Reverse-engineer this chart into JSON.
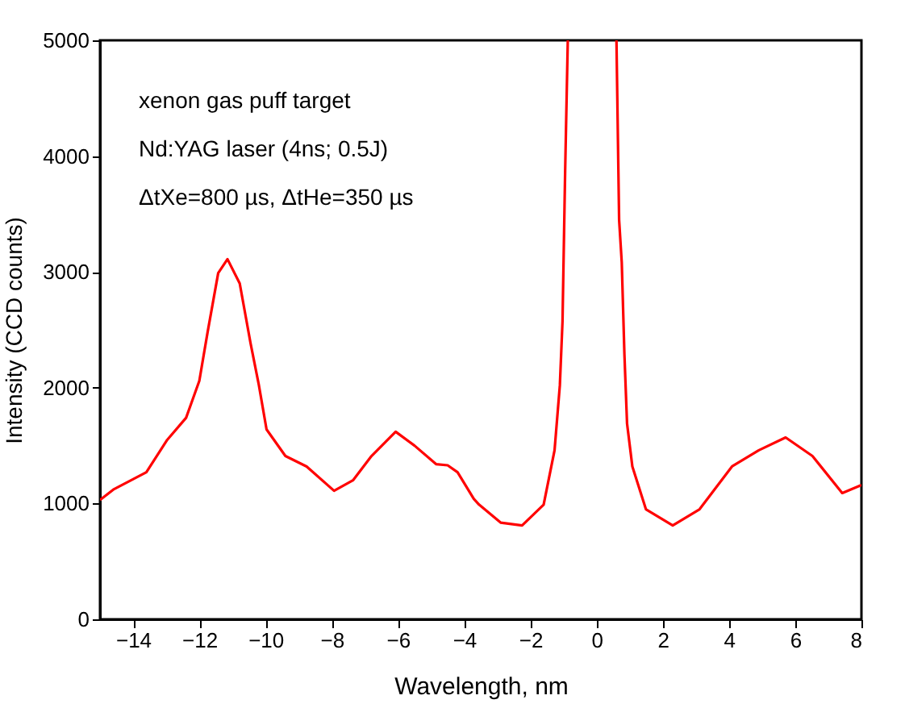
{
  "chart_data": {
    "type": "line",
    "xlabel": "Wavelength, nm",
    "ylabel": "Intensity (CCD counts)",
    "annotations": [
      "xenon gas puff target",
      "Nd:YAG laser (4ns; 0.5J)",
      "ΔtXe=800 µs, ΔtHe=350 µs"
    ],
    "xlim": [
      -15,
      8
    ],
    "xticks": [
      -14,
      -12,
      -10,
      -8,
      -6,
      -4,
      -2,
      0,
      2,
      4,
      6,
      8
    ],
    "ylim": [
      0,
      5000
    ],
    "yticks": [
      0,
      1000,
      2000,
      3000,
      4000,
      5000
    ],
    "grid": false,
    "marker": "none",
    "line_style": "solid",
    "series": [
      {
        "color": "#ff0000",
        "x": [
          -15,
          -14.6,
          -13.6,
          -12.97,
          -12.4,
          -12.0,
          -11.75,
          -11.43,
          -11.15,
          -10.78,
          -10.45,
          -10.2,
          -9.97,
          -9.4,
          -8.76,
          -7.93,
          -7.36,
          -6.8,
          -6.07,
          -5.5,
          -4.85,
          -4.5,
          -4.2,
          -3.71,
          -3.55,
          -2.9,
          -2.25,
          -1.6,
          -1.27,
          -1.11,
          -1.03,
          -0.95,
          -0.87,
          0,
          0.6,
          0.68,
          0.76,
          0.84,
          0.92,
          1.08,
          1.49,
          2.3,
          3.11,
          4.09,
          4.9,
          5.71,
          6.52,
          7.42,
          8
        ],
        "values": [
          1030,
          1120,
          1270,
          1550,
          1740,
          2060,
          2480,
          2990,
          3110,
          2900,
          2380,
          2020,
          1640,
          1410,
          1320,
          1110,
          1200,
          1410,
          1620,
          1500,
          1340,
          1330,
          1270,
          1040,
          990,
          835,
          810,
          990,
          1460,
          2020,
          2570,
          3870,
          5000,
          null,
          5000,
          3450,
          3080,
          2290,
          1690,
          1320,
          950,
          810,
          950,
          1320,
          1460,
          1570,
          1410,
          1090,
          1160
        ]
      }
    ]
  }
}
